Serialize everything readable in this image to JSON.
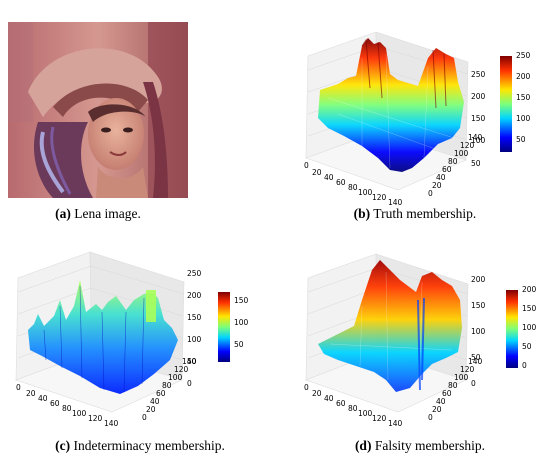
{
  "figure": {
    "panels": [
      {
        "letter": "(a)",
        "caption": " Lena image."
      },
      {
        "letter": "(b)",
        "caption": " Truth membership."
      },
      {
        "letter": "(c)",
        "caption": " Indeterminacy membership."
      },
      {
        "letter": "(d)",
        "caption": " Falsity membership."
      }
    ]
  },
  "chart_data": [
    {
      "type": "surface3d",
      "panel": "b",
      "x_ticks": [
        "0",
        "20",
        "40",
        "60",
        "80",
        "100",
        "120",
        "140"
      ],
      "y_ticks": [
        "0",
        "20",
        "40",
        "60",
        "80",
        "100",
        "120",
        "140"
      ],
      "z_ticks": [
        "50",
        "100",
        "150",
        "200",
        "250"
      ],
      "colorbar_ticks": [
        "50",
        "100",
        "150",
        "200",
        "250"
      ],
      "zlim": [
        0,
        260
      ],
      "colormap": "jet"
    },
    {
      "type": "surface3d",
      "panel": "c",
      "x_ticks": [
        "0",
        "20",
        "40",
        "60",
        "80",
        "100",
        "120",
        "140"
      ],
      "y_ticks": [
        "0",
        "20",
        "40",
        "60",
        "80",
        "100",
        "120",
        "140"
      ],
      "z_ticks": [
        "0",
        "50",
        "100",
        "150",
        "200",
        "250"
      ],
      "colorbar_ticks": [
        "50",
        "100",
        "150"
      ],
      "zlim": [
        0,
        260
      ],
      "colormap": "jet"
    },
    {
      "type": "surface3d",
      "panel": "d",
      "x_ticks": [
        "0",
        "20",
        "40",
        "60",
        "80",
        "100",
        "120",
        "140"
      ],
      "y_ticks": [
        "0",
        "20",
        "40",
        "60",
        "80",
        "100",
        "120",
        "140"
      ],
      "z_ticks": [
        "0",
        "50",
        "100",
        "150",
        "200"
      ],
      "colorbar_ticks": [
        "0",
        "50",
        "100",
        "150",
        "200"
      ],
      "zlim": [
        0,
        210
      ],
      "colormap": "jet"
    }
  ]
}
